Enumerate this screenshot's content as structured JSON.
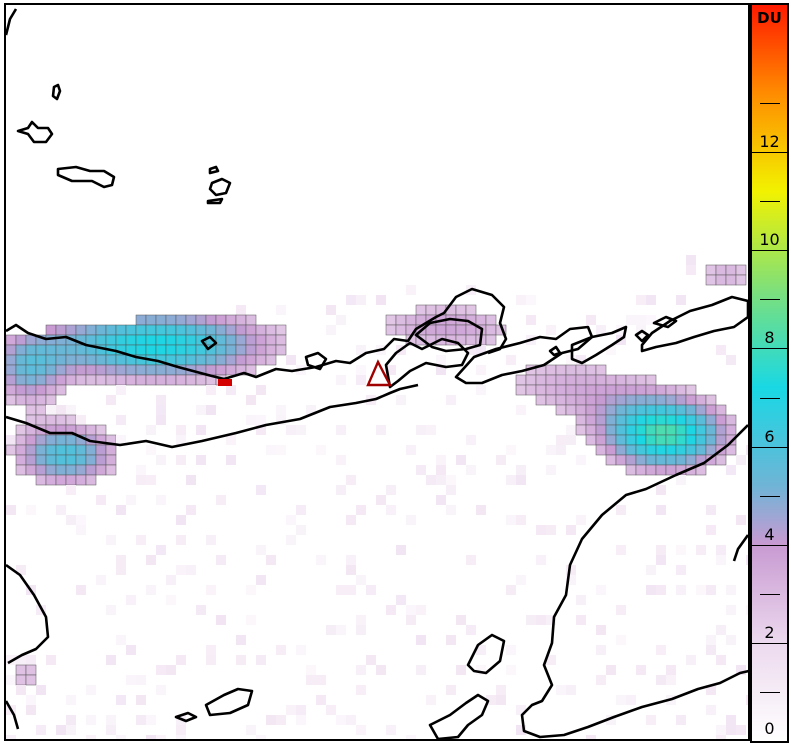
{
  "map": {
    "volcano_marker": "triangle-volcano-icon",
    "hotspot_marker": "red-hotspot-icon",
    "colors": {
      "coastline": "#000000",
      "volcano": "#a00000",
      "hotspot": "#d40000",
      "grid_line": "#555555"
    }
  },
  "colorbar": {
    "unit": "DU",
    "ticks": [
      "12",
      "10",
      "8",
      "6",
      "4",
      "2",
      "0"
    ],
    "tick_values": [
      12,
      10,
      8,
      6,
      4,
      2,
      0
    ],
    "range": [
      0,
      15
    ],
    "stops": [
      {
        "v": 0,
        "color": "#ffffff"
      },
      {
        "v": 2,
        "color": "#ecd9ee"
      },
      {
        "v": 4,
        "color": "#c89ad2"
      },
      {
        "v": 5.2,
        "color": "#6fb4d6"
      },
      {
        "v": 7.2,
        "color": "#19d8e4"
      },
      {
        "v": 9.2,
        "color": "#7ee07a"
      },
      {
        "v": 11.2,
        "color": "#f2f200"
      },
      {
        "v": 13.2,
        "color": "#ff8c00"
      },
      {
        "v": 15,
        "color": "#ff1a00"
      }
    ]
  },
  "chart_data": {
    "type": "heatmap",
    "colorbar_label": "DU",
    "value_range": [
      0,
      15
    ],
    "ticks": [
      0,
      2,
      4,
      6,
      8,
      10,
      12
    ]
  }
}
